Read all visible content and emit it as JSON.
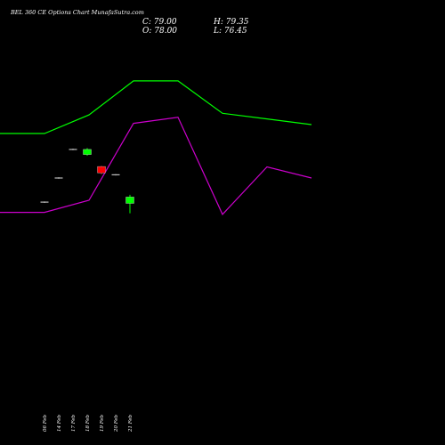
{
  "header": {
    "title": "BEL 360 CE Options Chart MunafaSutra.com",
    "close": "C: 79.00",
    "open": "O: 78.00",
    "high": "H: 79.35",
    "low": "L: 76.45"
  },
  "colors": {
    "background": "#000000",
    "green_line": "#00ff00",
    "magenta_line": "#cc00cc",
    "up_candle": "#00ff00",
    "down_candle": "#ff0000",
    "doji": "#ffffff"
  },
  "chart_data": [
    {
      "type": "line",
      "name": "upper-indicator",
      "x": [
        "",
        "",
        "",
        "",
        "",
        "",
        "",
        ""
      ],
      "values": [
        78.5,
        78.5,
        80.8,
        85.0,
        85.0,
        81.0,
        80.3,
        79.6
      ],
      "ylim": [
        40,
        95
      ]
    },
    {
      "type": "line",
      "name": "lower-indicator",
      "x": [
        "",
        "",
        "",
        "",
        "",
        "",
        "",
        ""
      ],
      "values": [
        30,
        30,
        42,
        118,
        124,
        28,
        75,
        64
      ],
      "ylim": [
        -200,
        240
      ]
    },
    {
      "type": "candlestick",
      "categories": [
        "06 Feb",
        "14 Feb",
        "17 Feb",
        "18 Feb",
        "19 Feb",
        "20 Feb",
        "21 Feb"
      ],
      "xlabel": "",
      "ylabel": "",
      "ylim": [
        40,
        110
      ],
      "candles": [
        {
          "open": 78.2,
          "close": 78.2,
          "high": 78.3,
          "low": 78.1
        },
        {
          "open": 82.0,
          "close": 82.0,
          "high": 82.1,
          "low": 81.9
        },
        {
          "open": 86.5,
          "close": 86.5,
          "high": 86.6,
          "low": 86.4
        },
        {
          "open": 85.7,
          "close": 86.5,
          "high": 86.7,
          "low": 85.5
        },
        {
          "open": 83.8,
          "close": 82.8,
          "high": 83.9,
          "low": 82.6
        },
        {
          "open": 82.5,
          "close": 82.5,
          "high": 82.6,
          "low": 82.4
        },
        {
          "open": 78.0,
          "close": 79.0,
          "high": 79.35,
          "low": 76.45
        }
      ]
    }
  ]
}
